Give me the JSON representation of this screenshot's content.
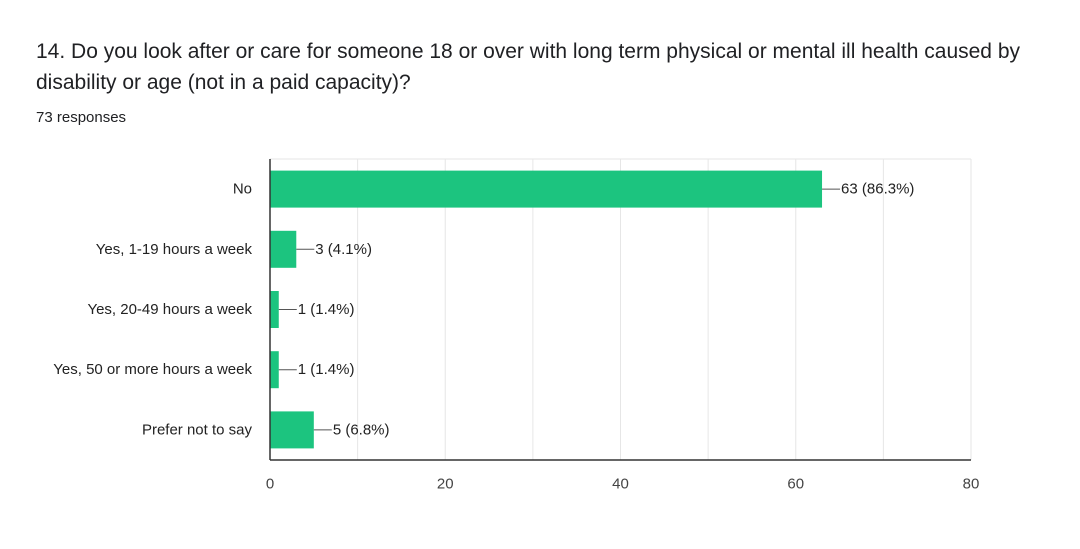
{
  "question": {
    "title": "14. Do you look after or care for someone 18 or over with long term physical or mental ill health caused by disability or age (not in a paid capacity)?",
    "responses": "73 responses"
  },
  "chart_data": {
    "type": "bar",
    "orientation": "horizontal",
    "categories": [
      "No",
      "Yes, 1-19 hours a week",
      "Yes, 20-49 hours a week",
      "Yes, 50 or more hours a week",
      "Prefer not to say"
    ],
    "values": [
      63,
      3,
      1,
      1,
      5
    ],
    "data_labels": [
      "63 (86.3%)",
      "3 (4.1%)",
      "1 (1.4%)",
      "1 (1.4%)",
      "5 (6.8%)"
    ],
    "xlim": [
      0,
      80
    ],
    "xticks": [
      0,
      20,
      40,
      60,
      80
    ],
    "grid": true,
    "bar_color": "#1cc47f",
    "grid_color": "#e6e6e6",
    "axis_color": "#333333"
  }
}
